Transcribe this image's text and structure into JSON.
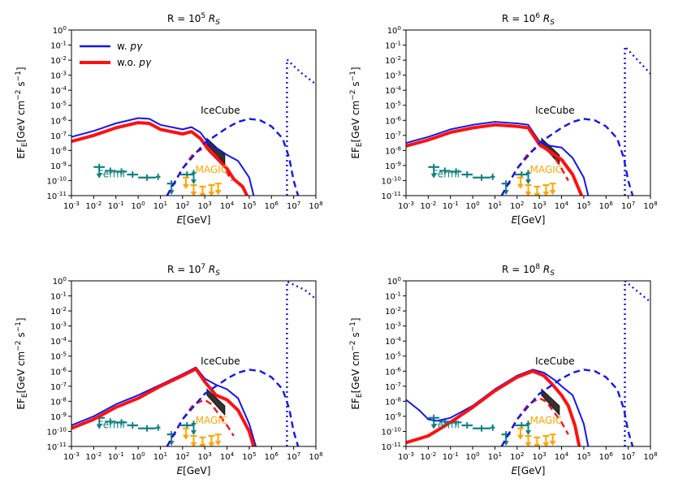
{
  "figure": {
    "xlabel_prefix": "E",
    "xlabel_unit": "[GeV]",
    "ylabel": "EF_E[GeV cm^-2 s^-1]",
    "xticks": [
      "10^-3",
      "10^-2",
      "10^-1",
      "10^0",
      "10^1",
      "10^2",
      "10^3",
      "10^4",
      "10^5",
      "10^6",
      "10^7",
      "10^8"
    ],
    "yticks": [
      "10^0",
      "10^-1",
      "10^-2",
      "10^-3",
      "10^-4",
      "10^-5",
      "10^-6",
      "10^-7",
      "10^-8",
      "10^-9",
      "10^-10",
      "10^-11"
    ],
    "xlim_log10": [
      -3,
      8
    ],
    "ylim_log10": [
      -11,
      0
    ],
    "legend": [
      {
        "label": "w. pγ",
        "color": "#1515f0"
      },
      {
        "label": "w.o. pγ",
        "color": "#ff1010"
      }
    ],
    "labels": {
      "icecube": "IceCube",
      "fermi": "Fermi",
      "magic": "MAGIC"
    },
    "colors": {
      "blue": "#1515f0",
      "red": "#ff1010",
      "fermi": "#128080",
      "magic": "#ffa500",
      "icecube": "#111111"
    }
  },
  "chart_data": [
    {
      "type": "line",
      "title_prefix": "R = 10",
      "title_exp": "5",
      "title_suffix": "R",
      "title_sub": "S",
      "xscale": "log",
      "yscale": "log",
      "series": [
        {
          "name": "w. pγ",
          "style": "solid",
          "color": "#1515f0",
          "x_log10": [
            -3,
            -2,
            -1,
            0,
            0.5,
            1,
            2,
            2.4,
            2.8,
            3.2,
            3.6,
            4,
            4.5,
            5,
            5.2
          ],
          "y_log10": [
            -7.1,
            -6.7,
            -6.2,
            -5.85,
            -5.9,
            -6.3,
            -6.6,
            -6.45,
            -6.8,
            -7.6,
            -7.9,
            -8.3,
            -8.7,
            -9.8,
            -11
          ]
        },
        {
          "name": "w.o. pγ",
          "style": "solid",
          "color": "#ff1010",
          "x_log10": [
            -3,
            -2,
            -1,
            0,
            0.5,
            1,
            2,
            2.4,
            2.8,
            3.2,
            3.6,
            4,
            4.3,
            4.7,
            4.9
          ],
          "y_log10": [
            -7.4,
            -7,
            -6.5,
            -6.15,
            -6.2,
            -6.6,
            -6.9,
            -6.75,
            -7.2,
            -8,
            -8.6,
            -9.2,
            -9.9,
            -10.4,
            -11
          ]
        },
        {
          "name": "gamma cascade (dashed)",
          "style": "dashed",
          "color": "#ff1010",
          "x_log10": [
            1.3,
            2,
            2.5,
            3,
            3.3,
            3.6,
            3.9,
            4.2
          ],
          "y_log10": [
            -11,
            -9.2,
            -8.2,
            -7.8,
            -8,
            -8.5,
            -9.2,
            -10
          ]
        },
        {
          "name": "neutrino (dashed)",
          "style": "dashed",
          "color": "#1515f0",
          "x_log10": [
            1.3,
            2,
            3,
            4,
            4.5,
            5,
            5.5,
            6,
            6.5,
            6.8,
            7,
            7.2
          ],
          "y_log10": [
            -11,
            -9.2,
            -7.5,
            -6.5,
            -6.1,
            -5.9,
            -6.0,
            -6.4,
            -7.2,
            -8.5,
            -10,
            -11
          ]
        },
        {
          "name": "edge (dotted)",
          "style": "dotted",
          "color": "#1515f0",
          "x_log10": [
            6.7,
            6.7,
            7.3,
            8
          ],
          "y_log10": [
            -11,
            -1.95,
            -2.8,
            -3.6
          ]
        }
      ]
    },
    {
      "type": "line",
      "title_prefix": "R = 10",
      "title_exp": "6",
      "title_suffix": "R",
      "title_sub": "S",
      "xscale": "log",
      "yscale": "log",
      "series": [
        {
          "name": "w. pγ",
          "style": "solid",
          "color": "#1515f0",
          "x_log10": [
            -3,
            -2,
            -1,
            0,
            1,
            2,
            2.5,
            3,
            3.5,
            4,
            4.5,
            5,
            5.2
          ],
          "y_log10": [
            -7.5,
            -7.1,
            -6.6,
            -6.3,
            -6.1,
            -6.2,
            -6.3,
            -7.4,
            -7.7,
            -7.8,
            -8.5,
            -9.8,
            -11
          ]
        },
        {
          "name": "w.o. pγ",
          "style": "solid",
          "color": "#ff1010",
          "x_log10": [
            -3,
            -2,
            -1,
            0,
            1,
            2,
            2.5,
            3,
            3.5,
            4,
            4.5,
            4.9
          ],
          "y_log10": [
            -7.7,
            -7.3,
            -6.8,
            -6.5,
            -6.3,
            -6.4,
            -6.5,
            -7.6,
            -8.1,
            -8.6,
            -9.6,
            -11
          ]
        },
        {
          "name": "gamma cascade (dashed)",
          "style": "dashed",
          "color": "#ff1010",
          "x_log10": [
            1.3,
            2,
            2.5,
            3,
            3.3,
            3.7,
            4,
            4.3
          ],
          "y_log10": [
            -11,
            -9.2,
            -8.2,
            -7.7,
            -7.9,
            -8.5,
            -9.2,
            -10
          ]
        },
        {
          "name": "neutrino (dashed)",
          "style": "dashed",
          "color": "#1515f0",
          "x_log10": [
            1.3,
            2,
            3,
            4,
            4.5,
            5,
            5.5,
            6,
            6.5,
            6.8,
            7,
            7.2
          ],
          "y_log10": [
            -11,
            -9.2,
            -7.5,
            -6.5,
            -6.1,
            -5.9,
            -6.0,
            -6.4,
            -7.2,
            -8.5,
            -10,
            -11
          ]
        },
        {
          "name": "edge (dotted)",
          "style": "dotted",
          "color": "#1515f0",
          "x_log10": [
            6.85,
            6.85,
            7.3,
            8
          ],
          "y_log10": [
            -11,
            -1.1,
            -1.8,
            -2.9
          ]
        }
      ]
    },
    {
      "type": "line",
      "title_prefix": "R = 10",
      "title_exp": "7",
      "title_suffix": "R",
      "title_sub": "S",
      "xscale": "log",
      "yscale": "log",
      "series": [
        {
          "name": "w. pγ",
          "style": "solid",
          "color": "#1515f0",
          "x_log10": [
            -3,
            -2,
            -1,
            0,
            1,
            2,
            2.6,
            3,
            3.5,
            4,
            4.5,
            5,
            5.3
          ],
          "y_log10": [
            -9.6,
            -9,
            -8.2,
            -7.6,
            -6.9,
            -6.2,
            -5.75,
            -6.5,
            -6.9,
            -7.2,
            -7.8,
            -9.5,
            -11
          ]
        },
        {
          "name": "w.o. pγ",
          "style": "solid",
          "color": "#ff1010",
          "x_log10": [
            -3,
            -2,
            -1,
            0,
            1,
            2,
            2.6,
            3,
            3.5,
            4,
            4.5,
            5,
            5.2
          ],
          "y_log10": [
            -9.8,
            -9.2,
            -8.4,
            -7.8,
            -7.0,
            -6.3,
            -5.85,
            -6.7,
            -7.6,
            -7.9,
            -8.6,
            -10,
            -11
          ]
        },
        {
          "name": "gamma cascade (dashed)",
          "style": "dashed",
          "color": "#ff1010",
          "x_log10": [
            1.3,
            2,
            2.5,
            3,
            3.3,
            3.6,
            4,
            4.3
          ],
          "y_log10": [
            -11,
            -9.2,
            -8.2,
            -7.9,
            -8.2,
            -8.8,
            -9.6,
            -10.3
          ]
        },
        {
          "name": "neutrino (dashed)",
          "style": "dashed",
          "color": "#1515f0",
          "x_log10": [
            1.3,
            2,
            3,
            4,
            4.5,
            5,
            5.5,
            6,
            6.5,
            6.8,
            7,
            7.2
          ],
          "y_log10": [
            -11,
            -9.2,
            -7.5,
            -6.5,
            -6.1,
            -5.9,
            -6.0,
            -6.4,
            -7.2,
            -8.5,
            -10,
            -11
          ]
        },
        {
          "name": "edge (dotted)",
          "style": "dotted",
          "color": "#1515f0",
          "x_log10": [
            6.7,
            6.7,
            7.5,
            8
          ],
          "y_log10": [
            -11,
            -0.05,
            -0.6,
            -1.2
          ]
        }
      ]
    },
    {
      "type": "line",
      "title_prefix": "R = 10",
      "title_exp": "8",
      "title_suffix": "R",
      "title_sub": "S",
      "xscale": "log",
      "yscale": "log",
      "series": [
        {
          "name": "w. pγ",
          "style": "solid",
          "color": "#1515f0",
          "x_log10": [
            -3,
            -2.4,
            -2,
            -1.6,
            -1,
            0,
            1,
            2,
            2.7,
            3.2,
            3.7,
            4,
            4.5,
            5,
            5.2
          ],
          "y_log10": [
            -7.9,
            -8.6,
            -9.2,
            -9.3,
            -9.1,
            -8.3,
            -7.2,
            -6.3,
            -5.9,
            -6.1,
            -6.6,
            -7.0,
            -7.6,
            -9.5,
            -11
          ]
        },
        {
          "name": "w.o. pγ",
          "style": "solid",
          "color": "#ff1010",
          "x_log10": [
            -3,
            -2,
            -1,
            0,
            1,
            2,
            2.7,
            3.2,
            3.6,
            4,
            4.3,
            4.6,
            4.8
          ],
          "y_log10": [
            -10.75,
            -10.3,
            -9.4,
            -8.4,
            -7.3,
            -6.4,
            -6.0,
            -6.3,
            -6.9,
            -7.6,
            -8.3,
            -9.6,
            -11
          ]
        },
        {
          "name": "gamma cascade (dashed)",
          "style": "dashed",
          "color": "#ff1010",
          "x_log10": [
            1.3,
            2,
            2.5,
            3,
            3.3,
            3.6,
            4,
            4.3
          ],
          "y_log10": [
            -11,
            -9.2,
            -8.2,
            -7.8,
            -8,
            -8.6,
            -9.4,
            -10.2
          ]
        },
        {
          "name": "neutrino (dashed)",
          "style": "dashed",
          "color": "#1515f0",
          "x_log10": [
            1.3,
            2,
            3,
            4,
            4.5,
            5,
            5.5,
            6,
            6.5,
            6.8,
            7,
            7.2
          ],
          "y_log10": [
            -11,
            -9.2,
            -7.5,
            -6.5,
            -6.1,
            -5.9,
            -6.0,
            -6.4,
            -7.2,
            -8.5,
            -10,
            -11
          ]
        },
        {
          "name": "edge (dotted)",
          "style": "dotted",
          "color": "#1515f0",
          "x_log10": [
            6.85,
            6.85,
            7.5,
            8
          ],
          "y_log10": [
            -11,
            0,
            -0.8,
            -1.4
          ]
        }
      ]
    }
  ],
  "observations": {
    "fermi": [
      {
        "x_log10": -1.75,
        "y_log10": -9.1,
        "xlo": -2.0,
        "xhi": -1.5,
        "ul": true
      },
      {
        "x_log10": -1.25,
        "y_log10": -9.35,
        "xlo": -1.5,
        "xhi": -1.0,
        "ul": false
      },
      {
        "x_log10": -0.75,
        "y_log10": -9.4,
        "xlo": -1.0,
        "xhi": -0.5,
        "ul": false
      },
      {
        "x_log10": -0.25,
        "y_log10": -9.6,
        "xlo": -0.5,
        "xhi": 0.0,
        "ul": false
      },
      {
        "x_log10": 0.4,
        "y_log10": -9.8,
        "xlo": 0.0,
        "xhi": 0.8,
        "ul": false
      },
      {
        "x_log10": 0.9,
        "y_log10": -9.75,
        "xlo": 0.8,
        "xhi": 1.0,
        "ul": false
      },
      {
        "x_log10": 1.5,
        "y_log10": -10.2,
        "xlo": 1.3,
        "xhi": 1.7,
        "ul": true
      },
      {
        "x_log10": 2.2,
        "y_log10": -9.6,
        "xlo": 1.9,
        "xhi": 2.5,
        "ul": false
      },
      {
        "x_log10": 2.5,
        "y_log10": -9.5,
        "xlo": 2.4,
        "xhi": 2.6,
        "ul": true
      }
    ],
    "magic": [
      {
        "x_log10": 2.15,
        "y_log10": -9.8
      },
      {
        "x_log10": 2.5,
        "y_log10": -10.3
      },
      {
        "x_log10": 2.9,
        "y_log10": -10.4
      },
      {
        "x_log10": 3.3,
        "y_log10": -10.3
      },
      {
        "x_log10": 3.6,
        "y_log10": -10.2
      }
    ],
    "icecube_band": {
      "x_log10": [
        3.1,
        3.9
      ],
      "y_top_log10": [
        -7.2,
        -8.3
      ],
      "y_bot_log10": [
        -7.6,
        -8.9
      ]
    }
  }
}
